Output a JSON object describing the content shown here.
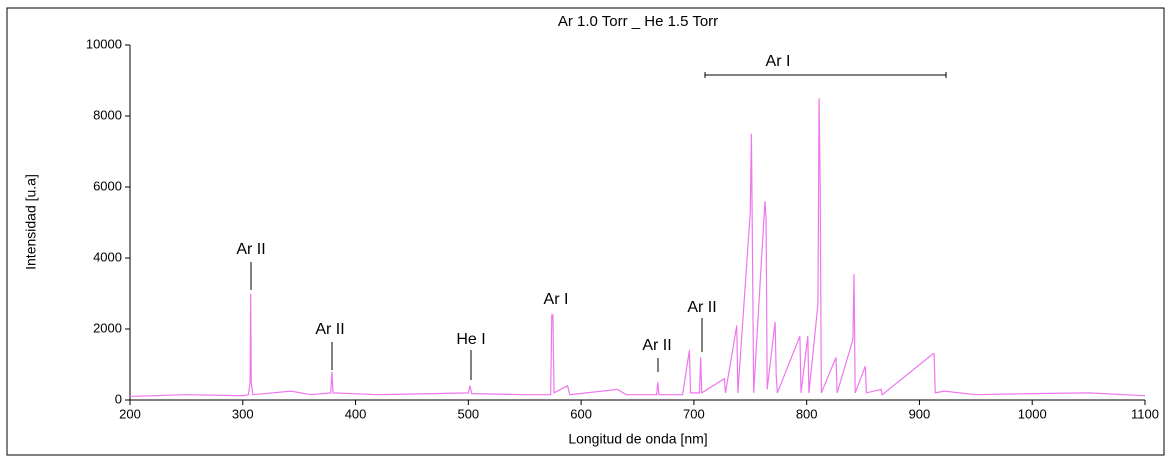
{
  "chart_data": {
    "type": "line",
    "title": "Ar 1.0 Torr _ He 1.5 Torr",
    "x_label": "Longitud de onda [nm]",
    "y_label": "Intensidad [u.a]",
    "xlim": [
      200,
      1100
    ],
    "xticks": [
      200,
      300,
      400,
      500,
      600,
      700,
      800,
      900,
      1000,
      1100
    ],
    "ylim": [
      0,
      10000
    ],
    "yticks": [
      0,
      2000,
      4000,
      6000,
      8000,
      10000
    ],
    "annotations": [
      "Ar II",
      "Ar II",
      "He I",
      "Ar I",
      "Ar II",
      "Ar II",
      "Ar I"
    ],
    "series": [
      {
        "color": "#ee77ee",
        "x": [
          200,
          250,
          300,
          305,
          306.5,
          307,
          307.5,
          309,
          343,
          360,
          378,
          379,
          380,
          420,
          470,
          500,
          501.5,
          503,
          550,
          573,
          574,
          575,
          576,
          588,
          590,
          632,
          640,
          667,
          668,
          669,
          690,
          696,
          697,
          705,
          706,
          707,
          727,
          728,
          738,
          739,
          750,
          751,
          752,
          753,
          763,
          764,
          765,
          772,
          773,
          774,
          794,
          795,
          801,
          802,
          810,
          811,
          812,
          813,
          826,
          827,
          841,
          842,
          843,
          852,
          853,
          866,
          867,
          912,
          913,
          914,
          922,
          950,
          1000,
          1050,
          1100
        ],
        "values": [
          100,
          150,
          120,
          150,
          500,
          3000,
          500,
          150,
          250,
          150,
          200,
          800,
          200,
          150,
          180,
          200,
          400,
          180,
          150,
          150,
          2400,
          2400,
          200,
          400,
          150,
          300,
          150,
          150,
          500,
          150,
          150,
          1400,
          200,
          200,
          1200,
          200,
          600,
          200,
          2100,
          200,
          5300,
          7500,
          4000,
          200,
          5600,
          5100,
          300,
          2200,
          700,
          200,
          1800,
          200,
          1800,
          200,
          2700,
          8500,
          6000,
          200,
          1200,
          200,
          1700,
          3550,
          200,
          950,
          200,
          300,
          150,
          1300,
          1300,
          200,
          250,
          150,
          180,
          200,
          120
        ]
      }
    ]
  }
}
